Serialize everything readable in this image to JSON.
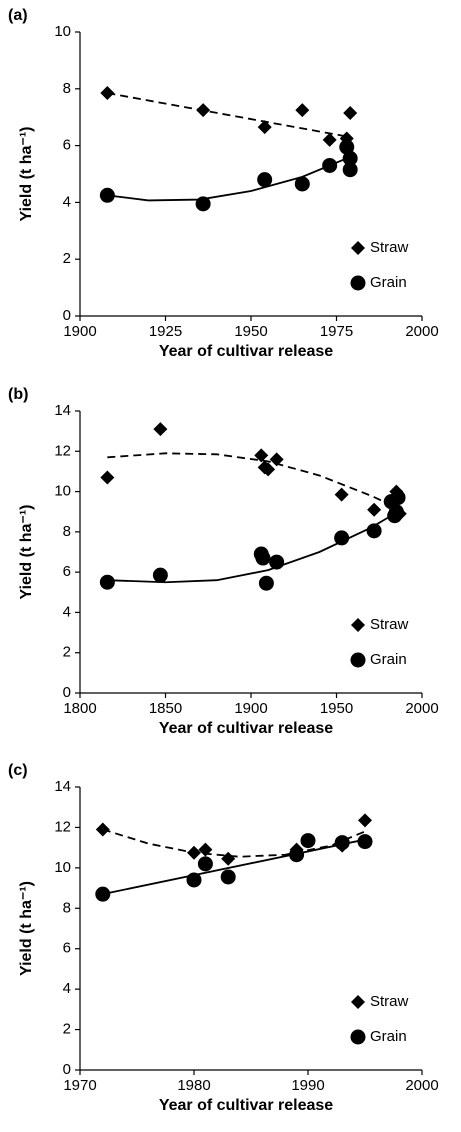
{
  "chart_data": [
    {
      "type": "scatter",
      "panel": "(a)",
      "xlabel": "Year of cultivar release",
      "ylabel": "Yield (t ha⁻¹)",
      "xlim": [
        1900,
        2000
      ],
      "xticks": [
        1900,
        1925,
        1950,
        1975,
        2000
      ],
      "ylim": [
        0,
        10
      ],
      "yticks": [
        0,
        2,
        4,
        6,
        8,
        10
      ],
      "legend": "lower right",
      "series": [
        {
          "name": "Straw",
          "marker": "diamond",
          "color": "#000000",
          "x": [
            1908,
            1936,
            1954,
            1965,
            1973,
            1978,
            1979
          ],
          "values": [
            7.85,
            7.25,
            6.65,
            7.25,
            6.2,
            6.25,
            7.15
          ],
          "trend": {
            "dash": true,
            "x": [
              1908,
              1979
            ],
            "y": [
              7.85,
              6.3
            ]
          }
        },
        {
          "name": "Grain",
          "marker": "circle",
          "color": "#000000",
          "x": [
            1908,
            1936,
            1954,
            1965,
            1973,
            1978,
            1979,
            1979
          ],
          "values": [
            4.25,
            3.95,
            4.8,
            4.65,
            5.3,
            5.95,
            5.55,
            5.15
          ],
          "trend": {
            "dash": false,
            "x": [
              1908,
              1920,
              1935,
              1950,
              1965,
              1979
            ],
            "y": [
              4.25,
              4.07,
              4.1,
              4.4,
              4.9,
              5.6
            ]
          }
        }
      ]
    },
    {
      "type": "scatter",
      "panel": "(b)",
      "xlabel": "Year of cultivar release",
      "ylabel": "Yield (t ha⁻¹)",
      "xlim": [
        1800,
        2000
      ],
      "xticks": [
        1800,
        1850,
        1900,
        1950,
        2000
      ],
      "ylim": [
        0,
        14
      ],
      "yticks": [
        0,
        2,
        4,
        6,
        8,
        10,
        12,
        14
      ],
      "legend": "lower right",
      "series": [
        {
          "name": "Straw",
          "marker": "diamond",
          "color": "#000000",
          "x": [
            1816,
            1847,
            1906,
            1908,
            1910,
            1915,
            1953,
            1972,
            1985,
            1986,
            1987
          ],
          "values": [
            10.7,
            13.1,
            11.8,
            11.2,
            11.1,
            11.6,
            9.85,
            9.1,
            10.0,
            9.8,
            8.9
          ],
          "trend": {
            "dash": true,
            "x": [
              1816,
              1850,
              1880,
              1910,
              1940,
              1970,
              1988
            ],
            "y": [
              11.7,
              11.9,
              11.85,
              11.5,
              10.8,
              9.8,
              9.1
            ]
          }
        },
        {
          "name": "Grain",
          "marker": "circle",
          "color": "#000000",
          "x": [
            1816,
            1847,
            1906,
            1907,
            1909,
            1915,
            1953,
            1972,
            1982,
            1984,
            1985,
            1986
          ],
          "values": [
            5.5,
            5.85,
            6.9,
            6.7,
            5.45,
            6.5,
            7.7,
            8.05,
            9.5,
            8.8,
            9.0,
            9.7
          ],
          "trend": {
            "dash": false,
            "x": [
              1816,
              1850,
              1880,
              1910,
              1940,
              1970,
              1988
            ],
            "y": [
              5.6,
              5.5,
              5.6,
              6.1,
              7.0,
              8.2,
              9.1
            ]
          }
        }
      ]
    },
    {
      "type": "scatter",
      "panel": "(c)",
      "xlabel": "Year of cultivar release",
      "ylabel": "Yield (t ha⁻¹)",
      "xlim": [
        1970,
        2000
      ],
      "xticks": [
        1970,
        1980,
        1990,
        2000
      ],
      "ylim": [
        0,
        14
      ],
      "yticks": [
        0,
        2,
        4,
        6,
        8,
        10,
        12,
        14
      ],
      "legend": "lower right",
      "series": [
        {
          "name": "Straw",
          "marker": "diamond",
          "color": "#000000",
          "x": [
            1972,
            1980,
            1981,
            1983,
            1989,
            1993,
            1995
          ],
          "values": [
            11.9,
            10.75,
            10.9,
            10.45,
            10.9,
            11.1,
            12.35
          ],
          "trend": {
            "dash": true,
            "x": [
              1972,
              1976,
              1980,
              1984,
              1988,
              1992,
              1995
            ],
            "y": [
              11.9,
              11.2,
              10.75,
              10.55,
              10.65,
              11.1,
              11.8
            ]
          }
        },
        {
          "name": "Grain",
          "marker": "circle",
          "color": "#000000",
          "x": [
            1972,
            1980,
            1981,
            1983,
            1989,
            1990,
            1993,
            1995
          ],
          "values": [
            8.7,
            9.4,
            10.2,
            9.55,
            10.65,
            11.35,
            11.25,
            11.3
          ],
          "trend": {
            "dash": false,
            "x": [
              1972,
              1995
            ],
            "y": [
              8.7,
              11.4
            ]
          }
        }
      ]
    }
  ]
}
